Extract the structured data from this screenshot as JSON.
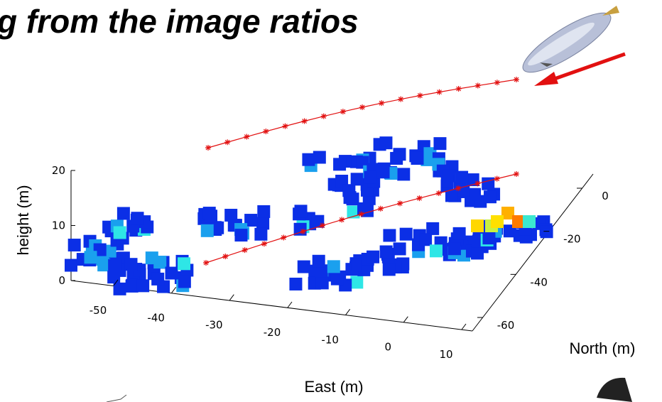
{
  "title": "g from the image ratios",
  "axes": {
    "height": {
      "label": "height (m)",
      "ticks": [
        0,
        10,
        20
      ]
    },
    "east": {
      "label": "East (m)",
      "ticks": [
        -50,
        -40,
        -30,
        -20,
        -10,
        0,
        10
      ]
    },
    "north": {
      "label": "North (m)",
      "ticks": [
        0,
        -20,
        -40,
        -60
      ]
    }
  }
}
